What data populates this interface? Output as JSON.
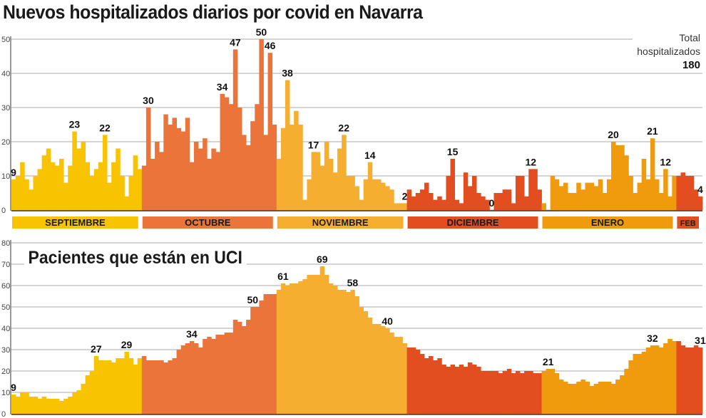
{
  "title": "Nuevos hospitalizados diarios por covid en Navarra",
  "total": {
    "label_line1": "Total",
    "label_line2": "hospitalizados",
    "value": "180"
  },
  "colors": {
    "SEPTIEMBRE": "#f8c300",
    "OCTUBRE": "#ea743a",
    "NOVIEMBRE": "#f5ae30",
    "DICIEMBRE": "#e24e1f",
    "ENERO": "#f09a0d",
    "FEB": "#e24e1f"
  },
  "chart_data": [
    {
      "type": "bar",
      "title": "Nuevos hospitalizados diarios por covid en Navarra",
      "ylim": [
        0,
        50
      ],
      "yticks": [
        "0",
        "10",
        "20",
        "30",
        "40",
        "50"
      ],
      "grid": true,
      "months": [
        {
          "name": "SEPTIEMBRE",
          "values": [
            9,
            10,
            14,
            9,
            6,
            10,
            12,
            16,
            18,
            14,
            13,
            15,
            8,
            13,
            23,
            18,
            20,
            14,
            10,
            12,
            14,
            22,
            8,
            14,
            18,
            10,
            4,
            10,
            16,
            12
          ],
          "labels": [
            {
              "day": 1,
              "value": 9
            },
            {
              "day": 15,
              "value": 23
            },
            {
              "day": 22,
              "value": 22
            }
          ]
        },
        {
          "name": "OCTUBRE",
          "values": [
            13,
            30,
            15,
            20,
            17,
            28,
            25,
            27,
            24,
            23,
            27,
            14,
            20,
            18,
            21,
            15,
            18,
            17,
            34,
            33,
            31,
            47,
            30,
            22,
            19,
            26,
            31,
            50,
            22,
            46,
            25
          ],
          "labels": [
            {
              "day": 2,
              "value": 30
            },
            {
              "day": 19,
              "value": 34
            },
            {
              "day": 22,
              "value": 47
            },
            {
              "day": 28,
              "value": 50
            },
            {
              "day": 30,
              "value": 46
            }
          ]
        },
        {
          "name": "NOVIEMBRE",
          "values": [
            15,
            24,
            38,
            25,
            29,
            25,
            3,
            9,
            17,
            17,
            13,
            20,
            15,
            11,
            18,
            22,
            10,
            10,
            7,
            3,
            9,
            14,
            9,
            9,
            8,
            7,
            6,
            2,
            2,
            2
          ],
          "labels": [
            {
              "day": 3,
              "value": 38
            },
            {
              "day": 9,
              "value": 17
            },
            {
              "day": 16,
              "value": 22
            },
            {
              "day": 22,
              "value": 14
            },
            {
              "day": 30,
              "value": 2
            }
          ]
        },
        {
          "name": "DICIEMBRE",
          "values": [
            6,
            4,
            5,
            6,
            8,
            5,
            3,
            4,
            3,
            10,
            15,
            3,
            2,
            11,
            7,
            10,
            5,
            4,
            3,
            0,
            5,
            5,
            6,
            6,
            2,
            10,
            10,
            4,
            12,
            12,
            6
          ],
          "labels": [
            {
              "day": 11,
              "value": 15
            },
            {
              "day": 20,
              "value": 0
            },
            {
              "day": 29,
              "value": 12
            }
          ]
        },
        {
          "name": "ENERO",
          "values": [
            2,
            0,
            10,
            9,
            7,
            8,
            5,
            5,
            8,
            6,
            8,
            8,
            7,
            9,
            5,
            9,
            20,
            19,
            19,
            16,
            10,
            5,
            8,
            15,
            9,
            21,
            9,
            5,
            12,
            4,
            10
          ],
          "labels": [
            {
              "day": 17,
              "value": 20
            },
            {
              "day": 26,
              "value": 21
            },
            {
              "day": 29,
              "value": 12
            }
          ]
        },
        {
          "name": "FEB",
          "values": [
            10,
            11,
            10,
            10,
            6,
            4
          ],
          "labels": [
            {
              "day": 6,
              "value": 4
            }
          ]
        }
      ]
    },
    {
      "type": "bar",
      "title": "Pacientes que están en UCI",
      "ylim": [
        0,
        80
      ],
      "yticks": [
        "0",
        "10",
        "20",
        "30",
        "40",
        "50",
        "60",
        "70",
        "80"
      ],
      "grid": true,
      "months": [
        {
          "name": "SEPTIEMBRE",
          "values": [
            9,
            8,
            10,
            10,
            8,
            8,
            7,
            8,
            7,
            7,
            7,
            6,
            7,
            8,
            10,
            11,
            14,
            18,
            20,
            27,
            25,
            25,
            25,
            24,
            26,
            26,
            29,
            26,
            23,
            26
          ],
          "labels": [
            {
              "day": 1,
              "value": 9
            },
            {
              "day": 20,
              "value": 27
            },
            {
              "day": 27,
              "value": 29
            }
          ]
        },
        {
          "name": "OCTUBRE",
          "values": [
            27,
            25,
            25,
            25,
            25,
            24,
            25,
            26,
            30,
            32,
            33,
            34,
            33,
            31,
            35,
            36,
            35,
            37,
            37,
            38,
            38,
            44,
            43,
            41,
            44,
            50,
            50,
            53,
            56,
            56,
            56
          ],
          "labels": [
            {
              "day": 12,
              "value": 34
            },
            {
              "day": 26,
              "value": 50
            }
          ]
        },
        {
          "name": "NOVIEMBRE",
          "values": [
            58,
            61,
            60,
            61,
            61,
            62,
            63,
            65,
            65,
            65,
            69,
            65,
            61,
            60,
            58,
            58,
            57,
            58,
            55,
            50,
            48,
            45,
            42,
            42,
            41,
            40,
            38,
            36,
            36,
            33
          ],
          "labels": [
            {
              "day": 2,
              "value": 61
            },
            {
              "day": 11,
              "value": 69
            },
            {
              "day": 18,
              "value": 58
            },
            {
              "day": 26,
              "value": 40
            }
          ]
        },
        {
          "name": "DICIEMBRE",
          "values": [
            31,
            31,
            30,
            28,
            26,
            27,
            25,
            26,
            23,
            22,
            23,
            22,
            23,
            22,
            24,
            23,
            22,
            20,
            20,
            20,
            20,
            19,
            20,
            21,
            19,
            20,
            19,
            20,
            20,
            19,
            19
          ],
          "labels": []
        },
        {
          "name": "ENERO",
          "values": [
            20,
            21,
            21,
            19,
            16,
            15,
            14,
            14,
            15,
            16,
            15,
            13,
            14,
            15,
            15,
            15,
            14,
            16,
            18,
            21,
            25,
            28,
            28,
            29,
            31,
            32,
            32,
            31,
            33,
            35,
            34
          ],
          "labels": [
            {
              "day": 2,
              "value": 21
            },
            {
              "day": 26,
              "value": 32
            }
          ]
        },
        {
          "name": "FEB",
          "values": [
            34,
            32,
            31,
            31,
            32,
            31
          ],
          "labels": [
            {
              "day": 6,
              "value": 31
            }
          ]
        }
      ]
    }
  ]
}
